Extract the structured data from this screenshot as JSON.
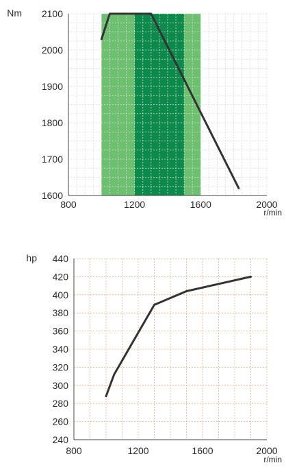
{
  "chart_data": [
    {
      "type": "line",
      "ylabel": "Nm",
      "xlabel": "r/min",
      "x_ticks": [
        "800",
        "1200",
        "1600",
        "2000"
      ],
      "y_ticks": [
        "1600",
        "1700",
        "1800",
        "1900",
        "2000",
        "2100"
      ],
      "xlim": [
        800,
        2000
      ],
      "ylim": [
        1600,
        2100
      ],
      "grid": true,
      "bands": [
        {
          "from": 1000,
          "to": 1600,
          "color": "#6cc070"
        },
        {
          "from": 1200,
          "to": 1500,
          "color": "#0b8a4c"
        }
      ],
      "series": [
        {
          "x": [
            1000,
            1050,
            1300,
            1830
          ],
          "y": [
            2030,
            2100,
            2100,
            1620
          ],
          "color": "#333333"
        }
      ]
    },
    {
      "type": "line",
      "ylabel": "hp",
      "xlabel": "r/min",
      "x_ticks": [
        "800",
        "1200",
        "1600",
        "2000"
      ],
      "y_ticks": [
        "240",
        "260",
        "280",
        "300",
        "320",
        "340",
        "360",
        "380",
        "400",
        "420",
        "440"
      ],
      "xlim": [
        800,
        2000
      ],
      "ylim": [
        240,
        440
      ],
      "grid": true,
      "grid_color": "#e8b08a",
      "series": [
        {
          "x": [
            1000,
            1050,
            1300,
            1500,
            1700,
            1900
          ],
          "y": [
            288,
            312,
            389,
            404,
            412,
            420
          ],
          "color": "#333333"
        }
      ]
    }
  ]
}
